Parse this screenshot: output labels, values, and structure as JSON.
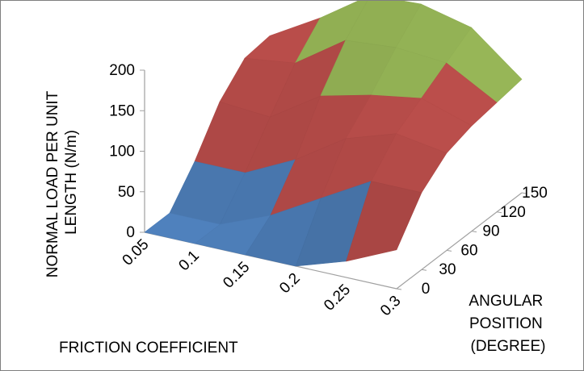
{
  "chart_data": {
    "type": "surface",
    "zlabel_lines": [
      "NORMAL  LOAD PER UNIT",
      "LENGTH  (N/m)"
    ],
    "xlabel": "FRICTION COEFFICIENT",
    "ylabel_lines": [
      "ANGULAR",
      "POSITION",
      "(DEGREE)"
    ],
    "z_ticks": [
      "0",
      "50",
      "100",
      "150",
      "200"
    ],
    "zlim": [
      0,
      200
    ],
    "x_categories": [
      "0.05",
      "0.1",
      "0.15",
      "0.2",
      "0.25",
      "0.3"
    ],
    "y_categories": [
      "0",
      "30",
      "60",
      "90",
      "120",
      "150"
    ],
    "values": [
      [
        0,
        0,
        40,
        90,
        120,
        124
      ],
      [
        0,
        0,
        40,
        85,
        128,
        160
      ],
      [
        0,
        25,
        70,
        125,
        170,
        202
      ],
      [
        0,
        60,
        110,
        140,
        175,
        205
      ],
      [
        20,
        95,
        130,
        150,
        170,
        190
      ],
      [
        48,
        95,
        120,
        130,
        135,
        140
      ]
    ],
    "band_colors": [
      {
        "range": "0-50",
        "color": "#4f81bd"
      },
      {
        "range": "50-100",
        "color": "#c0504d"
      },
      {
        "range": "100-150",
        "color": "#c0504d"
      },
      {
        "range": "150-200",
        "color": "#9bbb59"
      },
      {
        "range": "200-250",
        "color": "#8064a2"
      }
    ],
    "grid": false,
    "legend": "none"
  }
}
